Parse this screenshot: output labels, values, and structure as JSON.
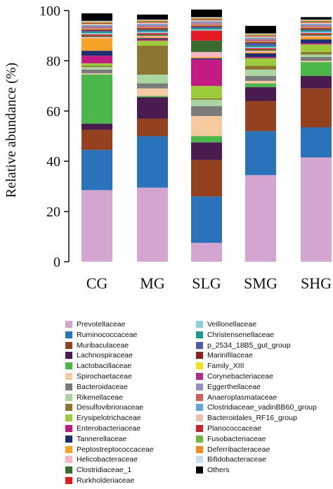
{
  "chart_data": {
    "type": "bar",
    "stacked": true,
    "ylabel": "Relative abundance (%)",
    "ylim": [
      0,
      100
    ],
    "yticks": [
      0,
      20,
      40,
      60,
      80,
      100
    ],
    "categories": [
      "CG",
      "MG",
      "SLG",
      "SMG",
      "SHG"
    ],
    "legend_position": "bottom",
    "series": [
      {
        "name": "Prevotellaceae",
        "color": "#d4a5cf",
        "values": [
          28.5,
          29.5,
          7.5,
          34.5,
          41.5
        ]
      },
      {
        "name": "Ruminococcaceae",
        "color": "#2a73bb",
        "values": [
          16.0,
          20.5,
          18.5,
          17.5,
          12.0
        ]
      },
      {
        "name": "Muribaculaceae",
        "color": "#94411f",
        "values": [
          8.0,
          7.0,
          14.5,
          12.0,
          15.5
        ]
      },
      {
        "name": "Lachnospiraceae",
        "color": "#4a1b4f",
        "values": [
          2.5,
          8.5,
          7.0,
          5.5,
          5.0
        ]
      },
      {
        "name": "Lactobacillaceae",
        "color": "#4bb74a",
        "values": [
          19.5,
          0.5,
          2.5,
          1.5,
          5.5
        ]
      },
      {
        "name": "Spirochaetaceae",
        "color": "#f6caa0",
        "values": [
          0.5,
          3.0,
          8.0,
          1.0,
          0.5
        ]
      },
      {
        "name": "Bacteroidaceae",
        "color": "#7b7b7b",
        "values": [
          1.5,
          2.0,
          4.0,
          2.0,
          1.5
        ]
      },
      {
        "name": "Rikenellaceae",
        "color": "#a8d5a0",
        "values": [
          1.0,
          3.5,
          2.5,
          2.5,
          1.0
        ]
      },
      {
        "name": "Desulfovibrionaceae",
        "color": "#8a7630",
        "values": [
          0.5,
          11.5,
          0.5,
          1.5,
          1.0
        ]
      },
      {
        "name": "Erysipelotrichaceae",
        "color": "#9ccb3b",
        "values": [
          1.0,
          2.0,
          5.0,
          3.0,
          3.0
        ]
      },
      {
        "name": "Enterobacteriaceae",
        "color": "#c31a84",
        "values": [
          3.0,
          0.5,
          10.5,
          0.5,
          0.5
        ]
      },
      {
        "name": "Tannerellaceae",
        "color": "#1d2f6e",
        "values": [
          2.0,
          0.5,
          0.5,
          1.5,
          1.5
        ]
      },
      {
        "name": "Peptostreptococcaceae",
        "color": "#f7a229",
        "values": [
          5.0,
          0.5,
          0.5,
          0.5,
          1.0
        ]
      },
      {
        "name": "Helicobacteraceae",
        "color": "#f6b7c4",
        "values": [
          0.5,
          0.5,
          2.0,
          0.5,
          0.5
        ]
      },
      {
        "name": "Clostridiaceae_1",
        "color": "#3a6b2e",
        "values": [
          0.5,
          0.5,
          4.5,
          0.5,
          0.5
        ]
      },
      {
        "name": "Rurkholderiaceae",
        "color": "#e51b24",
        "values": [
          0.5,
          0.5,
          4.0,
          0.5,
          0.5
        ]
      },
      {
        "name": "Veillonellaceae",
        "color": "#8fd0e0",
        "values": [
          0.5,
          0.5,
          0.5,
          0.5,
          0.5
        ]
      },
      {
        "name": "Christensenellaceae",
        "color": "#1a9a8a",
        "values": [
          0.5,
          0.5,
          0.5,
          0.5,
          0.5
        ]
      },
      {
        "name": "p_2534_18B5_gut_group",
        "color": "#4e5ea6",
        "values": [
          0.5,
          0.5,
          0.5,
          1.0,
          0.5
        ]
      },
      {
        "name": "Marinifilaceae",
        "color": "#8c1f1f",
        "values": [
          0.5,
          0.5,
          0.5,
          0.5,
          0.5
        ]
      },
      {
        "name": "Family_XIII",
        "color": "#f2e41c",
        "values": [
          0.3,
          0.3,
          0.3,
          0.3,
          0.3
        ]
      },
      {
        "name": "Corynebacteriaceae",
        "color": "#b02a8e",
        "values": [
          0.3,
          0.3,
          0.3,
          0.3,
          0.3
        ]
      },
      {
        "name": "Eggerthellaceae",
        "color": "#9b8cc4",
        "values": [
          0.3,
          0.3,
          0.3,
          0.3,
          0.3
        ]
      },
      {
        "name": "Anaeroplasmataceae",
        "color": "#d15c5c",
        "values": [
          0.3,
          0.3,
          0.3,
          0.3,
          0.3
        ]
      },
      {
        "name": "Clostridiaceae_vadinBB60_group",
        "color": "#63a6d8",
        "values": [
          0.5,
          0.5,
          0.5,
          0.5,
          0.5
        ]
      },
      {
        "name": "Bacteroidales_RF16_group",
        "color": "#e8c3b0",
        "values": [
          0.5,
          0.5,
          0.5,
          0.5,
          0.5
        ]
      },
      {
        "name": "Planococcaceae",
        "color": "#c4242a",
        "values": [
          0.3,
          0.3,
          0.3,
          0.3,
          0.3
        ]
      },
      {
        "name": "Fusobacteriaceae",
        "color": "#6fb43f",
        "values": [
          0.3,
          0.3,
          0.3,
          0.3,
          0.3
        ]
      },
      {
        "name": "Deferribacteraceae",
        "color": "#f58a1f",
        "values": [
          0.3,
          0.3,
          0.3,
          0.3,
          0.3
        ]
      },
      {
        "name": "Bifidobacteraceae",
        "color": "#c9dcef",
        "values": [
          0.3,
          0.3,
          0.3,
          0.3,
          0.3
        ]
      },
      {
        "name": "Others",
        "color": "#000000",
        "values": [
          3.0,
          2.0,
          3.0,
          3.0,
          1.0
        ]
      }
    ]
  }
}
